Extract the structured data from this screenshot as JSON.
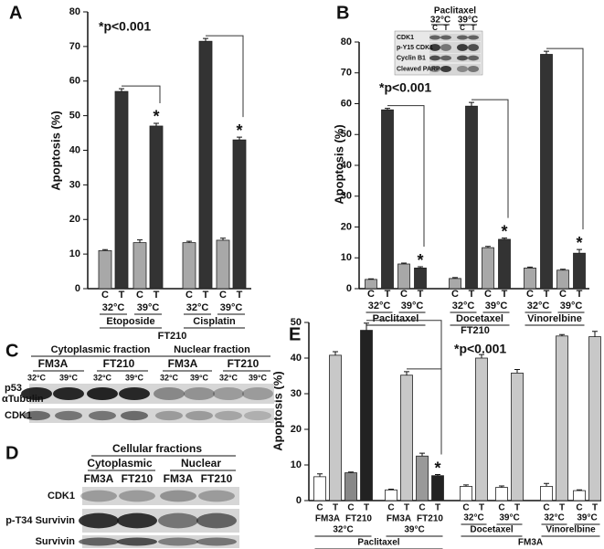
{
  "panels": [
    "A",
    "B",
    "C",
    "D",
    "E"
  ],
  "chart_data": [
    {
      "type": "bar",
      "ylabel": "Apoptosis (%)",
      "annotation": "*p<0.001",
      "ylim": [
        0,
        80
      ],
      "yticks": [
        0,
        10,
        20,
        30,
        40,
        50,
        60,
        70,
        80
      ],
      "categories": [
        "C",
        "T",
        "C",
        "T",
        "C",
        "T",
        "C",
        "T"
      ],
      "values": [
        11,
        57,
        13.3,
        47,
        13.3,
        71.5,
        14,
        43
      ],
      "errors": [
        0.3,
        0.8,
        0.8,
        0.8,
        0.4,
        0.8,
        0.6,
        0.8
      ],
      "colors": [
        "#a8a8a8",
        "#333333",
        "#a8a8a8",
        "#333333",
        "#a8a8a8",
        "#333333",
        "#a8a8a8",
        "#333333"
      ],
      "significance": [
        null,
        null,
        null,
        "*",
        null,
        null,
        null,
        "*"
      ],
      "temperatures": [
        "32°C",
        "39°C",
        "32°C",
        "39°C"
      ],
      "drugs": [
        "Etoposide",
        "Cisplatin"
      ],
      "cell_line": "FT210"
    },
    {
      "type": "bar",
      "ylabel": "Apoptosis (%)",
      "annotation": "*p<0.001",
      "ylim": [
        0,
        80
      ],
      "yticks": [
        0,
        10,
        20,
        30,
        40,
        50,
        60,
        70,
        80
      ],
      "categories": [
        "C",
        "T",
        "C",
        "T",
        "C",
        "T",
        "C",
        "T",
        "C",
        "T",
        "C",
        "T"
      ],
      "values": [
        3,
        58,
        8,
        6.7,
        3.3,
        59.2,
        13.3,
        16,
        6.7,
        76,
        6,
        11.5
      ],
      "errors": [
        0.2,
        0.5,
        0.3,
        0.4,
        0.3,
        1.2,
        0.4,
        0.4,
        0.3,
        1,
        0.3,
        1.2
      ],
      "colors": [
        "#a8a8a8",
        "#333333",
        "#a8a8a8",
        "#333333",
        "#a8a8a8",
        "#333333",
        "#a8a8a8",
        "#333333",
        "#a8a8a8",
        "#333333",
        "#a8a8a8",
        "#333333"
      ],
      "significance": [
        null,
        null,
        null,
        "*",
        null,
        null,
        null,
        "*",
        null,
        null,
        null,
        "*"
      ],
      "temperatures": [
        "32°C",
        "39°C",
        "32°C",
        "39°C",
        "32°C",
        "39°C"
      ],
      "drugs": [
        "Paclitaxel",
        "Docetaxel",
        "Vinorelbine"
      ],
      "cell_line": "FT210"
    },
    {
      "type": "bar",
      "ylabel": "Apoptosis (%)",
      "annotation": "*p<0.001",
      "ylim": [
        0,
        50
      ],
      "yticks": [
        0,
        10,
        20,
        30,
        40,
        50
      ],
      "categories": [
        "C",
        "T",
        "C",
        "T",
        "C",
        "T",
        "C",
        "T",
        "C",
        "T",
        "C",
        "T",
        "C",
        "T",
        "C",
        "T"
      ],
      "values": [
        6.7,
        40.8,
        7.8,
        47.8,
        3,
        35.2,
        12.5,
        7,
        4,
        40,
        3.7,
        35.8,
        4,
        46.2,
        2.8,
        46
      ],
      "errors": [
        0.8,
        1,
        0.2,
        2,
        0.2,
        1,
        0.8,
        0.3,
        0.4,
        1,
        0.4,
        1,
        0.8,
        0.4,
        0.2,
        1.5
      ],
      "colors": [
        "#ffffff",
        "#c8c8c8",
        "#888888",
        "#222222",
        "#ffffff",
        "#c8c8c8",
        "#999999",
        "#222222",
        "#ffffff",
        "#c8c8c8",
        "#ffffff",
        "#c8c8c8",
        "#ffffff",
        "#c8c8c8",
        "#ffffff",
        "#c8c8c8"
      ],
      "significance": [
        null,
        null,
        null,
        null,
        null,
        null,
        null,
        "*",
        null,
        null,
        null,
        null,
        null,
        null,
        null,
        null
      ],
      "cell_lines": [
        "FM3A",
        "FT210",
        "FM3A",
        "FT210"
      ],
      "temperatures": [
        "32°C",
        "39°C",
        "32°C",
        "39°C",
        "32°C",
        "39°C"
      ],
      "drugs": [
        "Paclitaxel",
        "Docetaxel",
        "Vinorelbine"
      ],
      "cell_line": "FM3A"
    }
  ],
  "blots": {
    "inset": {
      "title": "Paclitaxel",
      "temperatures": [
        "32°C",
        "39°C"
      ],
      "lanes": [
        "C",
        "T",
        "C",
        "T"
      ],
      "rows": [
        "CDK1",
        "p-Y15 CDK1",
        "Cyclin B1",
        "Cleaved PARP"
      ]
    },
    "c": {
      "fractions": [
        "Cytoplasmic fraction",
        "Nuclear fraction"
      ],
      "cell_lines": [
        "FM3A",
        "FT210",
        "FM3A",
        "FT210"
      ],
      "temperatures": [
        "32°C",
        "39°C",
        "32°C",
        "39°C",
        "32°C",
        "39°C",
        "32°C",
        "39°C"
      ],
      "rows": [
        "p53",
        "αTubulin",
        "CDK1"
      ]
    },
    "d": {
      "title": "Cellular fractions",
      "fractions": [
        "Cytoplasmic",
        "Nuclear"
      ],
      "cell_lines": [
        "FM3A",
        "FT210",
        "FM3A",
        "FT210"
      ],
      "rows": [
        "CDK1",
        "p-T34 Survivin",
        "Survivin"
      ]
    }
  }
}
